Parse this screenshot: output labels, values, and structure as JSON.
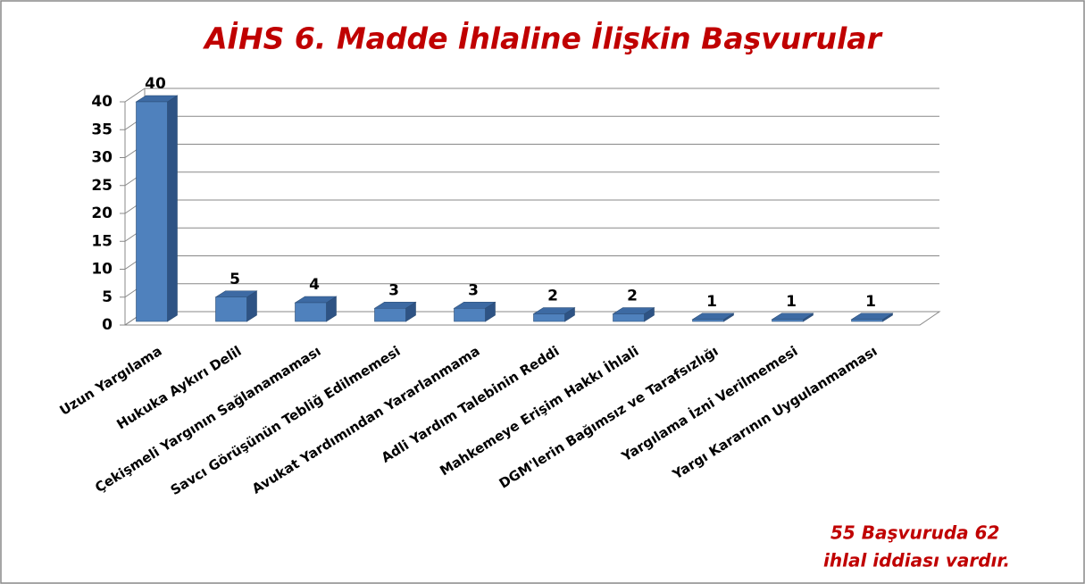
{
  "chart_data": {
    "type": "bar",
    "title": "AİHS 6. Madde İhlaline İlişkin Başvurular",
    "categories": [
      "Uzun Yargılama",
      "Hukuka Aykırı Delil",
      "Çekişmeli Yargının Sağlanamaması",
      "Savcı Görüşünün Tebliğ Edilmemesi",
      "Avukat Yardımından Yararlanmama",
      "Adli Yardım Talebinin Reddi",
      "Mahkemeye Erişim Hakkı İhlali",
      "DGM'lerin Bağımsız ve Tarafsızlığı",
      "Yargılama İzni Verilmemesi",
      "Yargı Kararının Uygulanmaması"
    ],
    "values": [
      40,
      5,
      4,
      3,
      3,
      2,
      2,
      1,
      1,
      1
    ],
    "color": "#4f81bd",
    "ylim": [
      0,
      40
    ],
    "yticks": [
      0,
      5,
      10,
      15,
      20,
      25,
      30,
      35,
      40
    ],
    "grid": true,
    "annotation": [
      "55 Başvuruda 62",
      "ihlal iddiası vardır."
    ]
  }
}
